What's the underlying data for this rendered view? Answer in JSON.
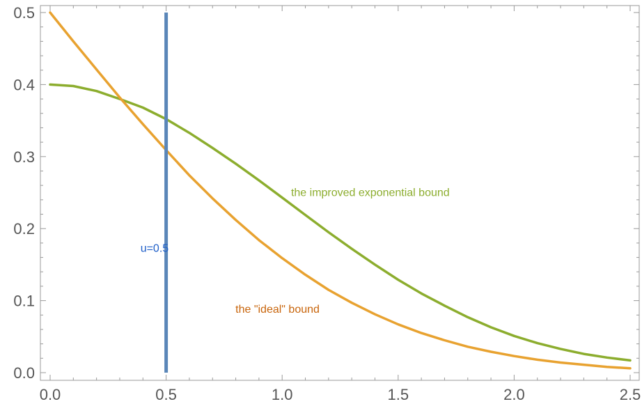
{
  "chart_data": {
    "type": "line",
    "title": "",
    "xlabel": "",
    "ylabel": "",
    "xlim": [
      0,
      2.5
    ],
    "ylim": [
      0,
      0.5
    ],
    "grid": false,
    "x_ticks": [
      "0.0",
      "0.5",
      "1.0",
      "1.5",
      "2.0",
      "2.5"
    ],
    "y_ticks": [
      "0.0",
      "0.1",
      "0.2",
      "0.3",
      "0.4",
      "0.5"
    ],
    "series": [
      {
        "name": "the improved exponential bound",
        "color": "#8cad2e",
        "x": [
          0,
          0.1,
          0.2,
          0.3,
          0.4,
          0.5,
          0.6,
          0.7,
          0.8,
          0.9,
          1.0,
          1.1,
          1.2,
          1.3,
          1.4,
          1.5,
          1.6,
          1.7,
          1.8,
          1.9,
          2.0,
          2.1,
          2.2,
          2.3,
          2.4,
          2.5
        ],
        "values": [
          0.4,
          0.398,
          0.391,
          0.38,
          0.368,
          0.352,
          0.333,
          0.312,
          0.29,
          0.267,
          0.243,
          0.219,
          0.195,
          0.172,
          0.15,
          0.129,
          0.11,
          0.093,
          0.077,
          0.063,
          0.051,
          0.041,
          0.033,
          0.026,
          0.021,
          0.017
        ]
      },
      {
        "name": "the \"ideal\" bound",
        "color": "#e8a230",
        "x": [
          0,
          0.1,
          0.2,
          0.3,
          0.4,
          0.5,
          0.6,
          0.7,
          0.8,
          0.9,
          1.0,
          1.1,
          1.2,
          1.3,
          1.4,
          1.5,
          1.6,
          1.7,
          1.8,
          1.9,
          2.0,
          2.1,
          2.2,
          2.3,
          2.4,
          2.5
        ],
        "values": [
          0.5,
          0.46,
          0.421,
          0.382,
          0.345,
          0.309,
          0.274,
          0.242,
          0.212,
          0.184,
          0.159,
          0.136,
          0.115,
          0.097,
          0.081,
          0.067,
          0.055,
          0.045,
          0.036,
          0.029,
          0.023,
          0.018,
          0.014,
          0.011,
          0.008,
          0.006
        ]
      }
    ],
    "vertical_line": {
      "x": 0.5,
      "y_range": [
        0,
        0.5
      ],
      "color": "#5a86b8"
    },
    "annotations": [
      {
        "text": "the improved exponential bound",
        "x": 1.38,
        "y": 0.245,
        "color": "#8cad2e"
      },
      {
        "text": "the \"ideal\" bound",
        "x": 0.98,
        "y": 0.083,
        "color": "#c8640a"
      },
      {
        "text": "u=0.5",
        "x": 0.45,
        "y": 0.168,
        "color": "#1f5fc8"
      }
    ]
  }
}
